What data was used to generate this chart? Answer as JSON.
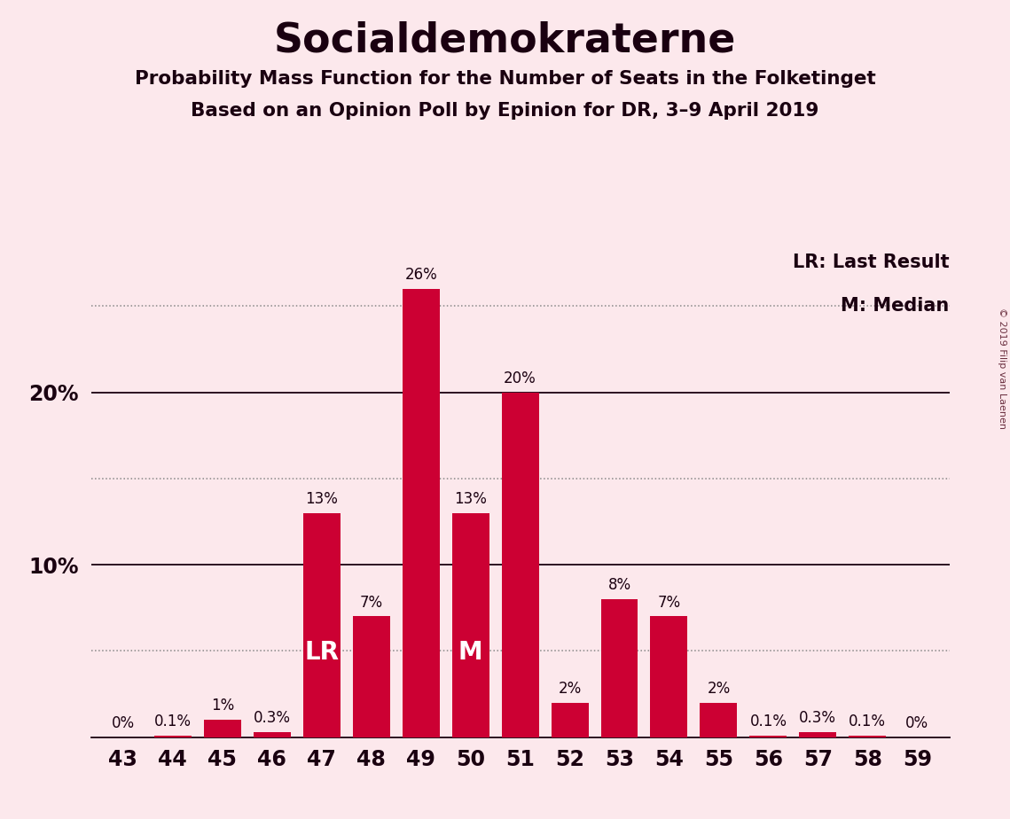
{
  "title": "Socialdemokraterne",
  "subtitle1": "Probability Mass Function for the Number of Seats in the Folketinget",
  "subtitle2": "Based on an Opinion Poll by Epinion for DR, 3–9 April 2019",
  "copyright": "© 2019 Filip van Laenen",
  "categories": [
    43,
    44,
    45,
    46,
    47,
    48,
    49,
    50,
    51,
    52,
    53,
    54,
    55,
    56,
    57,
    58,
    59
  ],
  "values": [
    0.0,
    0.1,
    1.0,
    0.3,
    13.0,
    7.0,
    26.0,
    13.0,
    20.0,
    2.0,
    8.0,
    7.0,
    2.0,
    0.1,
    0.3,
    0.1,
    0.0
  ],
  "bar_color": "#cc0033",
  "background_color": "#fce8ec",
  "text_color": "#1a0010",
  "lr_seat": 47,
  "median_seat": 50,
  "lr_label": "LR",
  "median_label": "M",
  "legend_lr": "LR: Last Result",
  "legend_m": "M: Median",
  "ylim_max": 28.5,
  "solid_yticks": [
    10,
    20
  ],
  "dotted_yticks": [
    5,
    15,
    25
  ],
  "bar_width": 0.75
}
